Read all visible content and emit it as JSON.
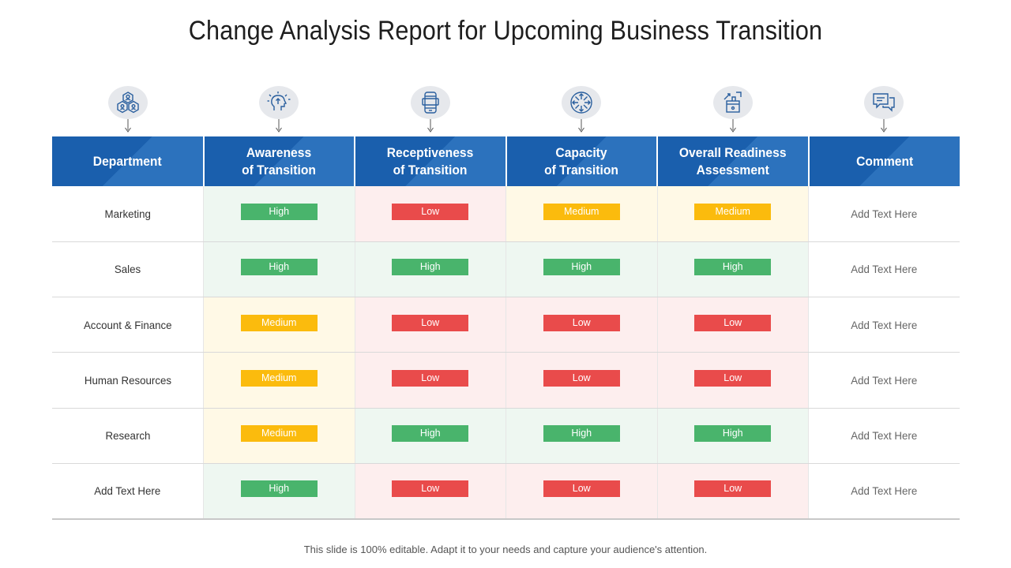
{
  "title": "Change Analysis Report for Upcoming Business Transition",
  "icons": [
    {
      "name": "team-hierarchy-icon"
    },
    {
      "name": "idea-head-icon"
    },
    {
      "name": "phone-device-icon"
    },
    {
      "name": "directions-circle-icon"
    },
    {
      "name": "growth-box-icon"
    },
    {
      "name": "chat-bubbles-icon"
    }
  ],
  "headers": [
    {
      "line1": "Department",
      "line2": ""
    },
    {
      "line1": "Awareness",
      "line2": "of Transition"
    },
    {
      "line1": "Receptiveness",
      "line2": "of Transition"
    },
    {
      "line1": "Capacity",
      "line2": "of Transition"
    },
    {
      "line1": "Overall Readiness",
      "line2": "Assessment"
    },
    {
      "line1": "Comment",
      "line2": ""
    }
  ],
  "rows": [
    {
      "department": "Marketing",
      "levels": [
        "High",
        "Low",
        "Medium",
        "Medium"
      ],
      "comment": "Add Text Here"
    },
    {
      "department": "Sales",
      "levels": [
        "High",
        "High",
        "High",
        "High"
      ],
      "comment": "Add Text Here"
    },
    {
      "department": "Account & Finance",
      "levels": [
        "Medium",
        "Low",
        "Low",
        "Low"
      ],
      "comment": "Add Text Here"
    },
    {
      "department": "Human Resources",
      "levels": [
        "Medium",
        "Low",
        "Low",
        "Low"
      ],
      "comment": "Add Text Here"
    },
    {
      "department": "Research",
      "levels": [
        "Medium",
        "High",
        "High",
        "High"
      ],
      "comment": "Add Text Here"
    },
    {
      "department": "Add Text Here",
      "levels": [
        "High",
        "Low",
        "Low",
        "Low"
      ],
      "comment": "Add Text Here"
    }
  ],
  "colors": {
    "header_blue": "#1a5fad",
    "high": "#49b46c",
    "low": "#e94b4b",
    "medium": "#fbbb0d"
  },
  "footer": "This slide is 100% editable. Adapt it to your needs and capture your audience's attention."
}
